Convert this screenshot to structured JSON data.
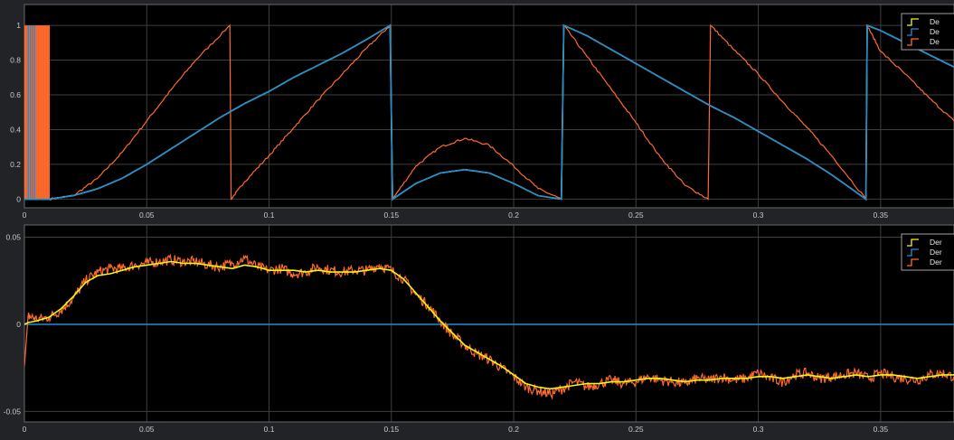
{
  "colors": {
    "background": "#222326",
    "plot_bg": "#000000",
    "grid": "#3e3e3e",
    "axis_frame": "#6a6a6a",
    "tick_text": "#c8c8c8",
    "series_yellow": "#f5f514",
    "series_blue": "#1e8cdc",
    "series_orange": "#ff6a2a",
    "legend_bg": "#000000",
    "legend_border": "#a0a0a0",
    "legend_text": "#e6e6e6"
  },
  "chart_data": [
    {
      "type": "line",
      "title": "",
      "xlabel": "",
      "ylabel": "",
      "xlim": [
        0,
        0.38
      ],
      "ylim": [
        -0.05,
        1.12
      ],
      "x_ticks": [
        0,
        0.05,
        0.1,
        0.15,
        0.2,
        0.25,
        0.3,
        0.35
      ],
      "x_tick_labels": [
        "0",
        "0.05",
        "0.1",
        "0.15",
        "0.2",
        "0.25",
        "0.3",
        "0.35"
      ],
      "y_ticks": [
        0,
        0.2,
        0.4,
        0.6,
        0.8,
        1
      ],
      "y_tick_labels": [
        "0",
        "0.2",
        "0.4",
        "0.6",
        "0.8",
        "1"
      ],
      "grid": true,
      "legend_position": "top-right",
      "legend": [
        "De",
        "De",
        "De"
      ],
      "series": [
        {
          "name": "De",
          "color": "yellow",
          "x": [
            0,
            0.01,
            0.02,
            0.03,
            0.04,
            0.05,
            0.06,
            0.07,
            0.08,
            0.09,
            0.1,
            0.11,
            0.12,
            0.13,
            0.14,
            0.1495,
            0.1505,
            0.16,
            0.17,
            0.18,
            0.19,
            0.2,
            0.21,
            0.2195,
            0.2205,
            0.23,
            0.24,
            0.25,
            0.26,
            0.27,
            0.28,
            0.29,
            0.3,
            0.31,
            0.32,
            0.33,
            0.344,
            0.3445,
            0.35,
            0.36,
            0.37,
            0.38
          ],
          "y": [
            0,
            0,
            0.02,
            0.06,
            0.12,
            0.2,
            0.29,
            0.38,
            0.47,
            0.55,
            0.62,
            0.7,
            0.77,
            0.84,
            0.92,
            1.0,
            0,
            0.09,
            0.15,
            0.17,
            0.15,
            0.09,
            0.02,
            0,
            1.0,
            0.94,
            0.86,
            0.78,
            0.7,
            0.62,
            0.54,
            0.47,
            0.39,
            0.31,
            0.23,
            0.14,
            0,
            1.0,
            0.97,
            0.9,
            0.83,
            0.76
          ]
        },
        {
          "name": "De",
          "color": "blue",
          "x": [
            0,
            0.01,
            0.02,
            0.03,
            0.04,
            0.05,
            0.06,
            0.07,
            0.08,
            0.09,
            0.1,
            0.11,
            0.12,
            0.13,
            0.14,
            0.1495,
            0.1505,
            0.16,
            0.17,
            0.18,
            0.19,
            0.2,
            0.21,
            0.2195,
            0.2205,
            0.23,
            0.24,
            0.25,
            0.26,
            0.27,
            0.28,
            0.29,
            0.3,
            0.31,
            0.32,
            0.33,
            0.344,
            0.3445,
            0.35,
            0.36,
            0.37,
            0.38
          ],
          "y": [
            0,
            0,
            0.02,
            0.06,
            0.12,
            0.2,
            0.29,
            0.38,
            0.47,
            0.55,
            0.62,
            0.7,
            0.77,
            0.84,
            0.92,
            1.0,
            0,
            0.09,
            0.15,
            0.17,
            0.15,
            0.09,
            0.02,
            0,
            1.0,
            0.94,
            0.86,
            0.78,
            0.7,
            0.62,
            0.54,
            0.47,
            0.39,
            0.31,
            0.23,
            0.14,
            0,
            1.0,
            0.97,
            0.9,
            0.83,
            0.76
          ]
        },
        {
          "name": "De",
          "color": "orange",
          "x": [
            0.01,
            0.02,
            0.03,
            0.04,
            0.05,
            0.06,
            0.07,
            0.084,
            0.0845,
            0.09,
            0.1,
            0.11,
            0.12,
            0.13,
            0.14,
            0.1495,
            0.1505,
            0.16,
            0.17,
            0.18,
            0.19,
            0.2,
            0.21,
            0.2195,
            0.2205,
            0.23,
            0.24,
            0.25,
            0.26,
            0.27,
            0.2795,
            0.2805,
            0.29,
            0.3,
            0.31,
            0.32,
            0.33,
            0.344,
            0.3445,
            0.35,
            0.36,
            0.37,
            0.38
          ],
          "y": [
            0,
            0.02,
            0.12,
            0.27,
            0.45,
            0.63,
            0.8,
            1.0,
            0,
            0.1,
            0.25,
            0.41,
            0.57,
            0.72,
            0.87,
            1.0,
            0,
            0.19,
            0.3,
            0.35,
            0.31,
            0.19,
            0.06,
            0,
            1.0,
            0.82,
            0.63,
            0.44,
            0.24,
            0.08,
            0,
            1.0,
            0.86,
            0.72,
            0.56,
            0.41,
            0.25,
            0,
            1.0,
            0.85,
            0.72,
            0.58,
            0.45
          ]
        }
      ],
      "startup_burst": {
        "description_series": "initial chatter",
        "x_range": [
          0,
          0.0105
        ],
        "y_range": [
          0,
          1
        ]
      }
    },
    {
      "type": "line",
      "title": "",
      "xlabel": "",
      "ylabel": "",
      "xlim": [
        0,
        0.38
      ],
      "ylim": [
        -0.056,
        0.057
      ],
      "x_ticks": [
        0,
        0.05,
        0.1,
        0.15,
        0.2,
        0.25,
        0.3,
        0.35
      ],
      "x_tick_labels": [
        "0",
        "0.05",
        "0.1",
        "0.15",
        "0.2",
        "0.25",
        "0.3",
        "0.35"
      ],
      "y_ticks": [
        -0.05,
        0,
        0.05
      ],
      "y_tick_labels": [
        "-0.05",
        "0",
        "0.05"
      ],
      "grid": true,
      "legend_position": "top-right",
      "legend": [
        "Der",
        "Der",
        "Der"
      ],
      "series": [
        {
          "name": "Der",
          "color": "yellow",
          "x": [
            0,
            0.0015,
            0.005,
            0.01,
            0.015,
            0.02,
            0.025,
            0.03,
            0.035,
            0.04,
            0.045,
            0.05,
            0.055,
            0.06,
            0.065,
            0.07,
            0.075,
            0.08,
            0.085,
            0.09,
            0.095,
            0.1,
            0.105,
            0.11,
            0.115,
            0.12,
            0.125,
            0.13,
            0.135,
            0.14,
            0.145,
            0.15,
            0.155,
            0.16,
            0.165,
            0.17,
            0.175,
            0.18,
            0.185,
            0.19,
            0.195,
            0.2,
            0.205,
            0.21,
            0.215,
            0.22,
            0.225,
            0.23,
            0.235,
            0.24,
            0.245,
            0.25,
            0.255,
            0.26,
            0.265,
            0.27,
            0.275,
            0.28,
            0.285,
            0.29,
            0.295,
            0.3,
            0.305,
            0.31,
            0.315,
            0.32,
            0.325,
            0.33,
            0.335,
            0.34,
            0.345,
            0.35,
            0.355,
            0.36,
            0.365,
            0.37,
            0.375,
            0.38
          ],
          "y": [
            0,
            0.001,
            0.002,
            0.004,
            0.009,
            0.016,
            0.024,
            0.028,
            0.029,
            0.031,
            0.033,
            0.034,
            0.035,
            0.036,
            0.035,
            0.035,
            0.034,
            0.033,
            0.032,
            0.034,
            0.033,
            0.031,
            0.031,
            0.031,
            0.03,
            0.031,
            0.03,
            0.03,
            0.03,
            0.031,
            0.032,
            0.031,
            0.026,
            0.018,
            0.01,
            0.002,
            -0.005,
            -0.012,
            -0.016,
            -0.02,
            -0.024,
            -0.029,
            -0.034,
            -0.036,
            -0.037,
            -0.036,
            -0.035,
            -0.034,
            -0.034,
            -0.033,
            -0.033,
            -0.032,
            -0.031,
            -0.031,
            -0.032,
            -0.033,
            -0.032,
            -0.032,
            -0.031,
            -0.031,
            -0.031,
            -0.03,
            -0.03,
            -0.031,
            -0.03,
            -0.029,
            -0.03,
            -0.031,
            -0.03,
            -0.029,
            -0.03,
            -0.029,
            -0.029,
            -0.03,
            -0.031,
            -0.03,
            -0.029,
            -0.029
          ]
        },
        {
          "name": "Der",
          "color": "blue",
          "x": [
            0,
            0.38
          ],
          "y": [
            0,
            0
          ]
        },
        {
          "name": "Der",
          "color": "orange",
          "x": [
            0,
            0.0015,
            0.005,
            0.01,
            0.015,
            0.02,
            0.025,
            0.03,
            0.035,
            0.04,
            0.045,
            0.05,
            0.055,
            0.06,
            0.065,
            0.07,
            0.075,
            0.08,
            0.085,
            0.09,
            0.095,
            0.1,
            0.105,
            0.11,
            0.115,
            0.12,
            0.125,
            0.13,
            0.135,
            0.14,
            0.145,
            0.15,
            0.155,
            0.16,
            0.165,
            0.17,
            0.175,
            0.18,
            0.185,
            0.19,
            0.195,
            0.2,
            0.205,
            0.21,
            0.215,
            0.22,
            0.225,
            0.23,
            0.235,
            0.24,
            0.245,
            0.25,
            0.255,
            0.26,
            0.265,
            0.27,
            0.275,
            0.28,
            0.285,
            0.29,
            0.295,
            0.3,
            0.305,
            0.31,
            0.315,
            0.32,
            0.325,
            0.33,
            0.335,
            0.34,
            0.345,
            0.35,
            0.355,
            0.36,
            0.365,
            0.37,
            0.375,
            0.38
          ],
          "y": [
            -0.024,
            0.005,
            0.003,
            0.004,
            0.008,
            0.015,
            0.025,
            0.03,
            0.032,
            0.032,
            0.034,
            0.035,
            0.036,
            0.037,
            0.036,
            0.036,
            0.034,
            0.033,
            0.035,
            0.038,
            0.033,
            0.031,
            0.032,
            0.029,
            0.03,
            0.033,
            0.031,
            0.03,
            0.031,
            0.031,
            0.034,
            0.031,
            0.026,
            0.017,
            0.011,
            0.002,
            -0.006,
            -0.012,
            -0.017,
            -0.02,
            -0.025,
            -0.03,
            -0.036,
            -0.038,
            -0.04,
            -0.037,
            -0.033,
            -0.036,
            -0.034,
            -0.032,
            -0.034,
            -0.033,
            -0.03,
            -0.032,
            -0.033,
            -0.034,
            -0.031,
            -0.032,
            -0.03,
            -0.032,
            -0.031,
            -0.028,
            -0.031,
            -0.033,
            -0.029,
            -0.028,
            -0.031,
            -0.03,
            -0.029,
            -0.028,
            -0.031,
            -0.028,
            -0.03,
            -0.031,
            -0.032,
            -0.029,
            -0.028,
            -0.03
          ]
        }
      ]
    }
  ]
}
